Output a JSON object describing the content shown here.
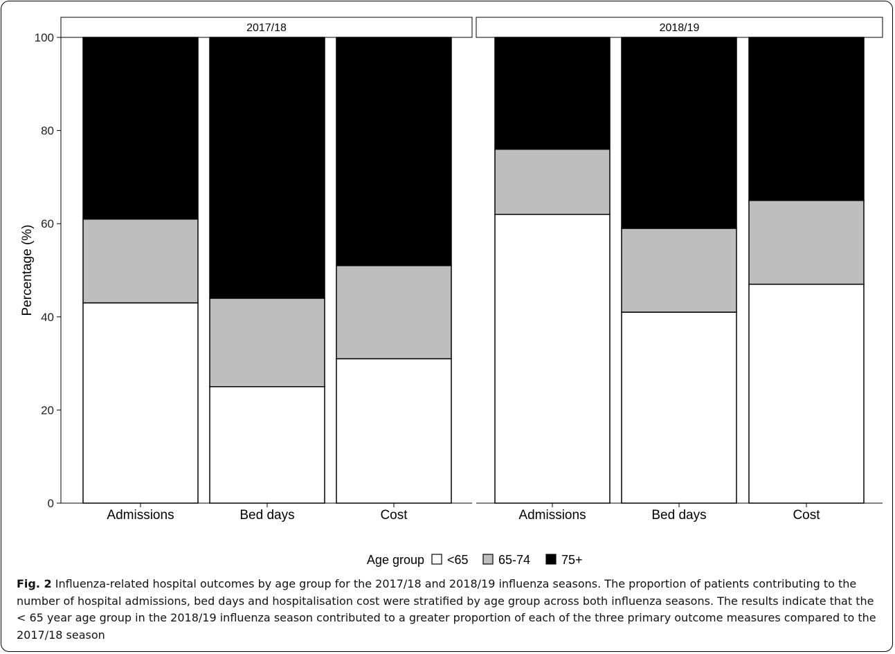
{
  "chart_data": {
    "type": "bar",
    "stacked": true,
    "ylabel": "Percentage (%)",
    "ylim": [
      0,
      100
    ],
    "yticks": [
      0,
      20,
      40,
      60,
      80,
      100
    ],
    "grid": false,
    "legend_placement": "bottom",
    "legend_title": "Age group",
    "series_colors": {
      "<65": "#ffffff",
      "65-74": "#bebebe",
      "75+": "#000000"
    },
    "panels": [
      {
        "title": "2017/18",
        "categories": [
          "Admissions",
          "Bed days",
          "Cost"
        ],
        "series": [
          {
            "name": "<65",
            "values": [
              43,
              25,
              31
            ]
          },
          {
            "name": "65-74",
            "values": [
              18,
              19,
              20
            ]
          },
          {
            "name": "75+",
            "values": [
              39,
              56,
              49
            ]
          }
        ]
      },
      {
        "title": "2018/19",
        "categories": [
          "Admissions",
          "Bed days",
          "Cost"
        ],
        "series": [
          {
            "name": "<65",
            "values": [
              62,
              41,
              47
            ]
          },
          {
            "name": "65-74",
            "values": [
              14,
              18,
              18
            ]
          },
          {
            "name": "75+",
            "values": [
              24,
              41,
              35
            ]
          }
        ]
      }
    ]
  },
  "caption": {
    "label": "Fig. 2",
    "text": " Influenza-related hospital outcomes by age group for the 2017/18 and 2018/19 influenza seasons. The proportion of patients contributing to the number of hospital admissions, bed days and hospitalisation cost were stratified by age group across both influenza seasons. The results indicate that the < 65 year age group in the 2018/19 influenza season contributed to a greater proportion of each of the three primary outcome measures compared to the 2017/18 season"
  }
}
